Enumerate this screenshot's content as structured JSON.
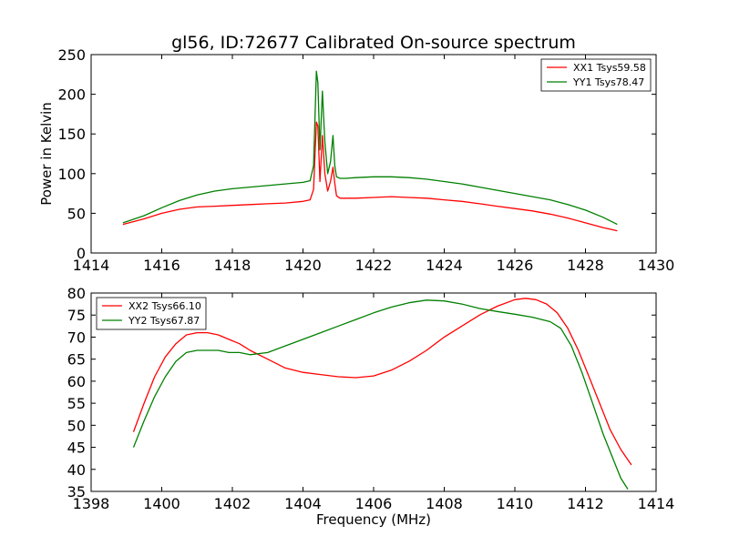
{
  "chart_data": [
    {
      "type": "line",
      "title": "gl56, ID:72677 Calibrated On-source spectrum",
      "xlabel": "",
      "ylabel": "Power in Kelvin",
      "xlim": [
        1414,
        1430
      ],
      "ylim": [
        0,
        250
      ],
      "xticks": [
        "1414",
        "1416",
        "1418",
        "1420",
        "1422",
        "1424",
        "1426",
        "1428",
        "1430"
      ],
      "yticks": [
        "0",
        "50",
        "100",
        "150",
        "200",
        "250"
      ],
      "legend_position": "top-right",
      "series": [
        {
          "name": "XX1 Tsys59.58",
          "color": "#ff0000",
          "x": [
            1414.9,
            1415.5,
            1416.0,
            1416.5,
            1417.0,
            1417.5,
            1418.0,
            1418.5,
            1419.0,
            1419.5,
            1420.0,
            1420.2,
            1420.3,
            1420.38,
            1420.42,
            1420.48,
            1420.55,
            1420.62,
            1420.7,
            1420.78,
            1420.85,
            1420.9,
            1420.95,
            1421.05,
            1421.2,
            1421.5,
            1422.0,
            1422.5,
            1423.0,
            1423.5,
            1424.0,
            1424.5,
            1425.0,
            1425.5,
            1426.0,
            1426.5,
            1427.0,
            1427.5,
            1428.0,
            1428.5,
            1428.9
          ],
          "y": [
            36,
            43,
            50,
            55,
            58,
            59,
            60,
            61,
            62,
            63,
            65,
            67,
            80,
            165,
            160,
            90,
            148,
            100,
            78,
            90,
            108,
            88,
            72,
            69,
            69,
            69,
            70,
            71,
            70,
            69,
            67,
            65,
            62,
            59,
            56,
            53,
            49,
            44,
            38,
            32,
            28
          ]
        },
        {
          "name": "YY1 Tsys78.47",
          "color": "#008000",
          "x": [
            1414.9,
            1415.5,
            1416.0,
            1416.5,
            1417.0,
            1417.5,
            1418.0,
            1418.5,
            1419.0,
            1419.5,
            1420.0,
            1420.2,
            1420.3,
            1420.38,
            1420.42,
            1420.48,
            1420.55,
            1420.62,
            1420.7,
            1420.78,
            1420.85,
            1420.9,
            1420.95,
            1421.05,
            1421.2,
            1421.5,
            1422.0,
            1422.5,
            1423.0,
            1423.5,
            1424.0,
            1424.5,
            1425.0,
            1425.5,
            1426.0,
            1426.5,
            1427.0,
            1427.5,
            1428.0,
            1428.5,
            1428.9
          ],
          "y": [
            38,
            47,
            57,
            66,
            73,
            78,
            81,
            83,
            85,
            87,
            89,
            91,
            110,
            229,
            215,
            130,
            204,
            140,
            100,
            115,
            148,
            110,
            96,
            94,
            94,
            95,
            96,
            96,
            95,
            93,
            90,
            87,
            83,
            79,
            75,
            71,
            67,
            61,
            54,
            45,
            36
          ]
        }
      ]
    },
    {
      "type": "line",
      "title": "",
      "xlabel": "Frequency (MHz)",
      "ylabel": "",
      "xlim": [
        1398,
        1414
      ],
      "ylim": [
        35,
        80
      ],
      "xticks": [
        "1398",
        "1400",
        "1402",
        "1404",
        "1406",
        "1408",
        "1410",
        "1412",
        "1414"
      ],
      "yticks": [
        "35",
        "40",
        "45",
        "50",
        "55",
        "60",
        "65",
        "70",
        "75",
        "80"
      ],
      "legend_position": "top-left",
      "series": [
        {
          "name": "XX2 Tsys66.10",
          "color": "#ff0000",
          "x": [
            1399.2,
            1399.5,
            1399.8,
            1400.1,
            1400.4,
            1400.7,
            1401.0,
            1401.3,
            1401.6,
            1401.9,
            1402.2,
            1402.5,
            1403.0,
            1403.5,
            1404.0,
            1404.5,
            1405.0,
            1405.5,
            1406.0,
            1406.5,
            1407.0,
            1407.5,
            1408.0,
            1408.5,
            1409.0,
            1409.5,
            1410.0,
            1410.3,
            1410.6,
            1410.9,
            1411.2,
            1411.5,
            1411.8,
            1412.1,
            1412.4,
            1412.7,
            1413.0,
            1413.3
          ],
          "y": [
            48.5,
            55,
            61,
            65.5,
            68.5,
            70.5,
            71,
            71,
            70.5,
            69.5,
            68.5,
            67,
            65,
            63,
            62,
            61.5,
            61,
            60.8,
            61.2,
            62.5,
            64.5,
            67,
            70,
            72.5,
            75,
            77,
            78.5,
            78.8,
            78.5,
            77.5,
            75.5,
            72,
            67,
            61,
            55,
            49,
            44.5,
            41
          ]
        },
        {
          "name": "YY2 Tsys67.87",
          "color": "#008000",
          "x": [
            1399.2,
            1399.5,
            1399.8,
            1400.1,
            1400.4,
            1400.7,
            1401.0,
            1401.3,
            1401.6,
            1401.9,
            1402.2,
            1402.5,
            1403.0,
            1403.5,
            1404.0,
            1404.5,
            1405.0,
            1405.5,
            1406.0,
            1406.5,
            1407.0,
            1407.5,
            1408.0,
            1408.5,
            1409.0,
            1409.5,
            1410.0,
            1410.5,
            1411.0,
            1411.3,
            1411.6,
            1411.9,
            1412.2,
            1412.5,
            1412.8,
            1413.0,
            1413.2
          ],
          "y": [
            45,
            51,
            56.5,
            61,
            64.5,
            66.5,
            67,
            67,
            67,
            66.5,
            66.5,
            66,
            66.5,
            68,
            69.5,
            71,
            72.5,
            74,
            75.5,
            76.8,
            77.8,
            78.4,
            78.2,
            77.5,
            76.5,
            75.8,
            75.2,
            74.5,
            73.5,
            72,
            68,
            62,
            55,
            48,
            42,
            38,
            35.5
          ]
        }
      ]
    }
  ]
}
